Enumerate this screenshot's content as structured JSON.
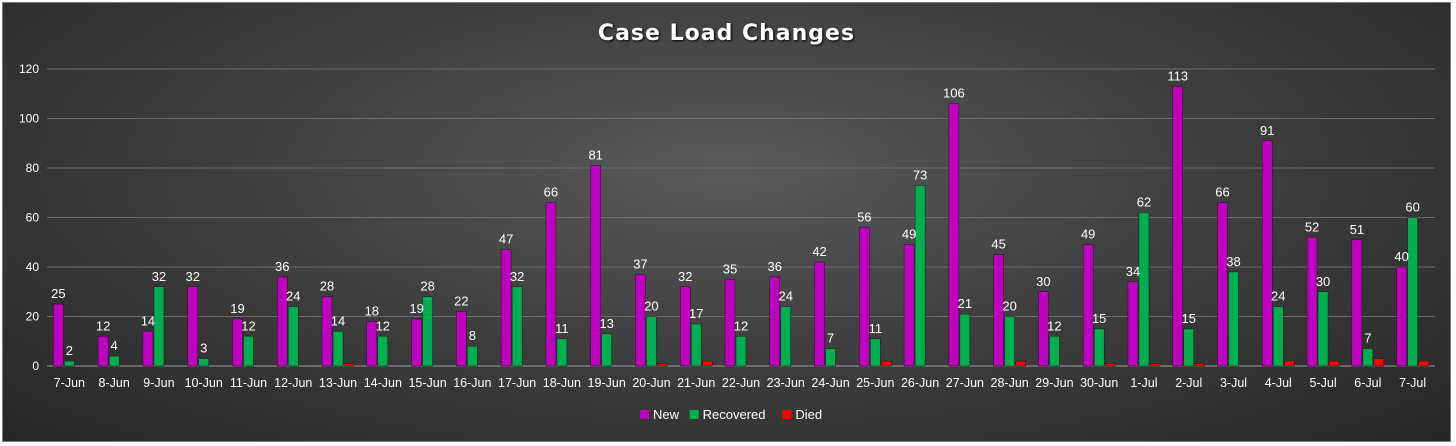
{
  "chart_data": {
    "type": "bar",
    "title": "Case Load Changes",
    "xlabel": "",
    "ylabel": "",
    "ylim": [
      0,
      120
    ],
    "yticks": [
      0,
      20,
      40,
      60,
      80,
      100,
      120
    ],
    "grid": true,
    "legend_position": "bottom",
    "categories": [
      "7-Jun",
      "8-Jun",
      "9-Jun",
      "10-Jun",
      "11-Jun",
      "12-Jun",
      "13-Jun",
      "14-Jun",
      "15-Jun",
      "16-Jun",
      "17-Jun",
      "18-Jun",
      "19-Jun",
      "20-Jun",
      "21-Jun",
      "22-Jun",
      "23-Jun",
      "24-Jun",
      "25-Jun",
      "26-Jun",
      "27-Jun",
      "28-Jun",
      "29-Jun",
      "30-Jun",
      "1-Jul",
      "2-Jul",
      "3-Jul",
      "4-Jul",
      "5-Jul",
      "6-Jul",
      "7-Jul"
    ],
    "series": [
      {
        "name": "New",
        "color": "#c000c0",
        "values": [
          25,
          12,
          14,
          32,
          19,
          36,
          28,
          18,
          19,
          22,
          47,
          66,
          81,
          37,
          32,
          35,
          36,
          42,
          56,
          49,
          106,
          45,
          30,
          49,
          34,
          113,
          66,
          91,
          52,
          51,
          40
        ]
      },
      {
        "name": "Recovered",
        "color": "#00b050",
        "values": [
          2,
          4,
          32,
          3,
          12,
          24,
          14,
          12,
          28,
          8,
          32,
          11,
          13,
          20,
          17,
          12,
          24,
          7,
          11,
          73,
          21,
          20,
          12,
          15,
          62,
          15,
          38,
          24,
          30,
          7,
          60
        ]
      },
      {
        "name": "Died",
        "color": "#ff0000",
        "values": [
          0,
          0,
          0,
          0,
          0,
          0,
          1,
          0,
          0,
          0,
          0,
          0,
          0,
          1,
          2,
          0,
          0,
          0,
          2,
          0,
          0,
          2,
          0,
          1,
          1,
          1,
          0,
          2,
          2,
          3,
          2
        ]
      }
    ],
    "data_labels": {
      "New": [
        25,
        12,
        14,
        32,
        19,
        36,
        28,
        18,
        19,
        22,
        47,
        66,
        81,
        37,
        32,
        35,
        36,
        42,
        56,
        49,
        106,
        45,
        30,
        49,
        34,
        113,
        66,
        91,
        52,
        51,
        40
      ],
      "Recovered": [
        2,
        4,
        32,
        3,
        12,
        24,
        14,
        12,
        28,
        8,
        32,
        11,
        13,
        20,
        17,
        12,
        24,
        7,
        11,
        73,
        21,
        20,
        12,
        15,
        62,
        15,
        38,
        24,
        30,
        7,
        60
      ]
    }
  }
}
